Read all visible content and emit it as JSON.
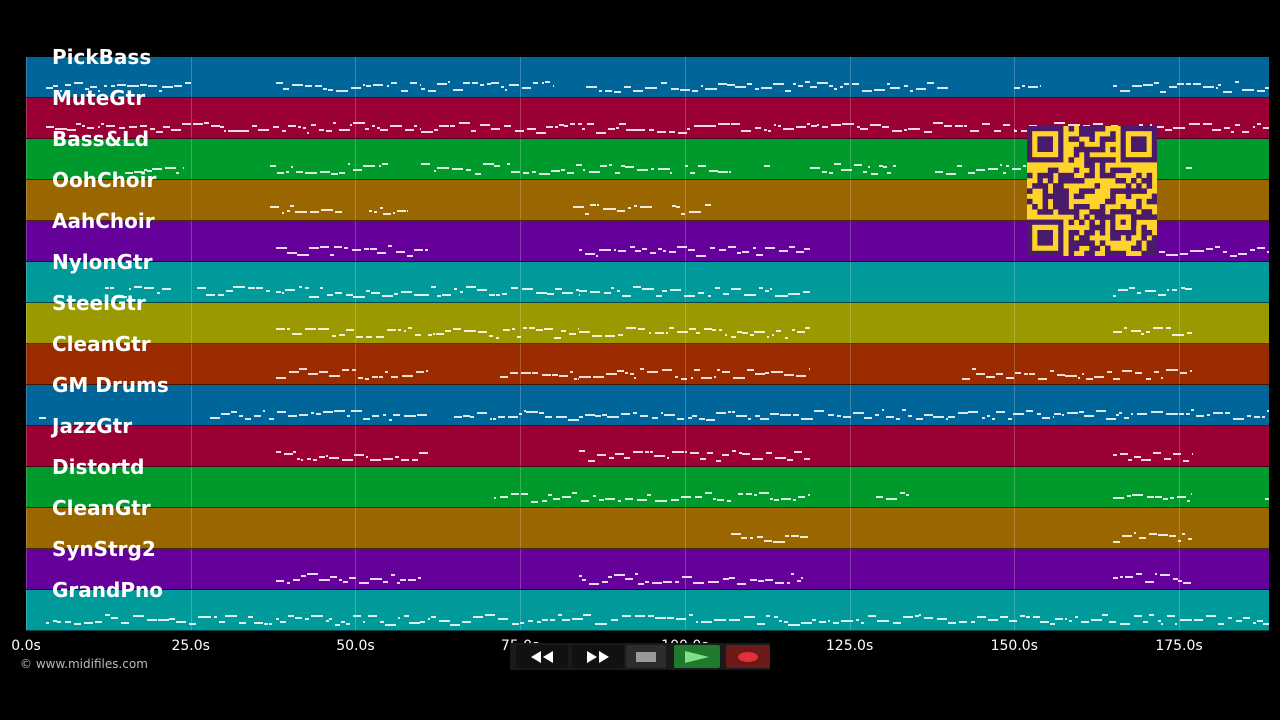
{
  "timeline": {
    "duration_s": 190,
    "ticks": [
      "0.0s",
      "25.0s",
      "50.0s",
      "75.0s",
      "100.0s",
      "125.0s",
      "150.0s",
      "175.0s"
    ]
  },
  "tracks": [
    {
      "name": "PickBass",
      "color": "#00669a",
      "notes": [
        [
          3,
          25
        ],
        [
          38,
          60
        ],
        [
          60,
          80
        ],
        [
          85,
          120
        ],
        [
          120,
          140
        ],
        [
          150,
          154
        ],
        [
          165,
          190
        ]
      ]
    },
    {
      "name": "MuteGtr",
      "color": "#9a0033",
      "notes": [
        [
          3,
          30
        ],
        [
          30,
          60
        ],
        [
          60,
          90
        ],
        [
          90,
          120
        ],
        [
          120,
          150
        ],
        [
          150,
          180
        ],
        [
          180,
          190
        ]
      ]
    },
    {
      "name": "Bass&Ld",
      "color": "#009a2c",
      "notes": [
        [
          15,
          24
        ],
        [
          37,
          55
        ],
        [
          60,
          72
        ],
        [
          73,
          98
        ],
        [
          100,
          107
        ],
        [
          112,
          113
        ],
        [
          119,
          132
        ],
        [
          138,
          142
        ],
        [
          143,
          165
        ],
        [
          176,
          177
        ]
      ]
    },
    {
      "name": "OohChoir",
      "color": "#9a6600",
      "notes": [
        [
          37,
          48
        ],
        [
          52,
          58
        ],
        [
          83,
          95
        ],
        [
          98,
          104
        ]
      ]
    },
    {
      "name": "AahChoir",
      "color": "#66009a",
      "notes": [
        [
          38,
          61
        ],
        [
          84,
          119
        ],
        [
          172,
          190
        ]
      ]
    },
    {
      "name": "NylonGtr",
      "color": "#009a9a",
      "notes": [
        [
          12,
          22
        ],
        [
          26,
          37
        ],
        [
          38,
          60
        ],
        [
          60,
          84
        ],
        [
          84,
          119
        ],
        [
          165,
          177
        ]
      ]
    },
    {
      "name": "SteelGtr",
      "color": "#9a9a00",
      "notes": [
        [
          38,
          60
        ],
        [
          61,
          84
        ],
        [
          84,
          119
        ],
        [
          165,
          177
        ]
      ]
    },
    {
      "name": "CleanGtr",
      "color": "#9a2c00",
      "notes": [
        [
          38,
          61
        ],
        [
          72,
          84
        ],
        [
          84,
          119
        ],
        [
          142,
          165
        ],
        [
          165,
          177
        ]
      ]
    },
    {
      "name": "GM Drums",
      "color": "#00669a",
      "notes": [
        [
          2,
          3
        ],
        [
          28,
          61
        ],
        [
          65,
          84
        ],
        [
          84,
          140
        ],
        [
          140,
          156
        ],
        [
          156,
          190
        ]
      ]
    },
    {
      "name": "JazzGtr",
      "color": "#9a0033",
      "notes": [
        [
          38,
          61
        ],
        [
          84,
          119
        ],
        [
          165,
          177
        ]
      ]
    },
    {
      "name": "Distortd",
      "color": "#009a2c",
      "notes": [
        [
          71,
          87
        ],
        [
          87,
          107
        ],
        [
          108,
          119
        ],
        [
          129,
          134
        ],
        [
          165,
          177
        ],
        [
          188,
          190
        ]
      ]
    },
    {
      "name": "CleanGtr",
      "color": "#9a6600",
      "notes": [
        [
          107,
          119
        ],
        [
          165,
          177
        ]
      ]
    },
    {
      "name": "SynStrg2",
      "color": "#66009a",
      "notes": [
        [
          38,
          60
        ],
        [
          84,
          118
        ],
        [
          165,
          177
        ]
      ]
    },
    {
      "name": "GrandPno",
      "color": "#009a9a",
      "notes": [
        [
          3,
          190
        ]
      ]
    }
  ],
  "copyright": "© www.midifiles.com",
  "transport": {
    "rewind": "rewind-icon",
    "fast_forward": "fast-forward-icon",
    "stop": "stop-icon",
    "play": "play-icon",
    "record": "record-icon",
    "play_color": "#1f7a2d",
    "record_color": "#e0303a"
  },
  "qr_code": {
    "color": "#ffd42a",
    "dark": "#4a1a6b"
  }
}
